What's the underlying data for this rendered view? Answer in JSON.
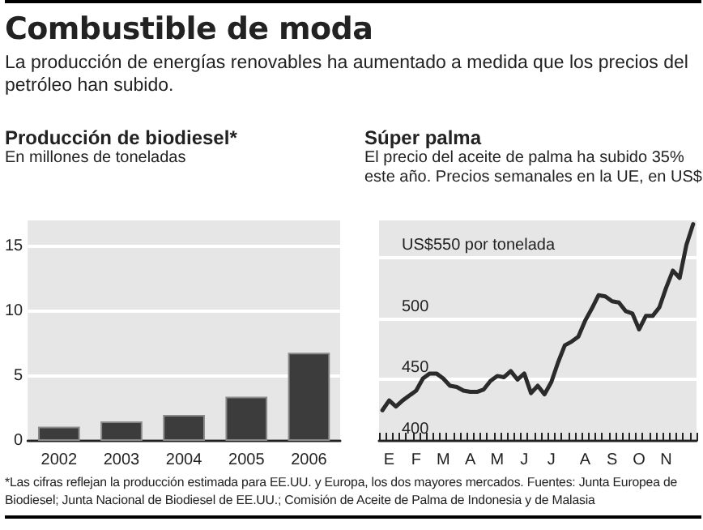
{
  "chart_data": [
    {
      "type": "bar",
      "title": "Producción de biodiesel*",
      "subtitle": "En millones de toneladas",
      "annotations": [
        "Combustible de moda",
        "La producción de energías renovables ha aumentado a medida que los precios del petróleo han subido.",
        "*Las cifras reflejan la producción estimada para EE.UU. y Europa, los dos mayores mercados. Fuentes: Junta Europea de Biodiesel; Junta Nacional de Biodiesel de EE.UU.; Comisión de Aceite de Palma de Indonesia y de Malasia"
      ],
      "categories": [
        "2002",
        "2003",
        "2004",
        "2005",
        "2006"
      ],
      "values": [
        1.1,
        1.5,
        2.0,
        3.4,
        6.8
      ],
      "color": "#3c3c3c",
      "ylim": [
        0,
        17
      ],
      "yticks": [
        0,
        5,
        10,
        15
      ],
      "grid": "y"
    },
    {
      "type": "line",
      "title": "Súper palma",
      "subtitle": "El precio del aceite de palma ha subido 35% este año. Precios semanales en la UE, en US$",
      "categories": [
        null,
        "E",
        null,
        null,
        null,
        "F",
        null,
        null,
        null,
        "M",
        null,
        null,
        null,
        "A",
        null,
        null,
        null,
        "M",
        null,
        null,
        null,
        "J",
        null,
        null,
        null,
        "J",
        null,
        null,
        null,
        null,
        "A",
        null,
        null,
        null,
        "S",
        null,
        null,
        null,
        "O",
        null,
        null,
        null,
        "N",
        null,
        null,
        null,
        null
      ],
      "values": [
        425,
        433,
        428,
        433,
        437,
        441,
        451,
        455,
        455,
        451,
        445,
        444,
        441,
        440,
        440,
        442,
        449,
        453,
        452,
        457,
        450,
        455,
        439,
        445,
        438,
        448,
        464,
        478,
        481,
        485,
        498,
        508,
        519,
        518,
        514,
        513,
        506,
        504,
        491,
        502,
        502,
        509,
        525,
        539,
        533,
        560,
        577
      ],
      "color": "#2b2b2b",
      "ylim": [
        400,
        580
      ],
      "yticks": [
        400,
        450,
        500,
        {
          "value": 550,
          "label": "US$550 por tonelada"
        }
      ],
      "grid": "y",
      "marker": "none"
    }
  ]
}
